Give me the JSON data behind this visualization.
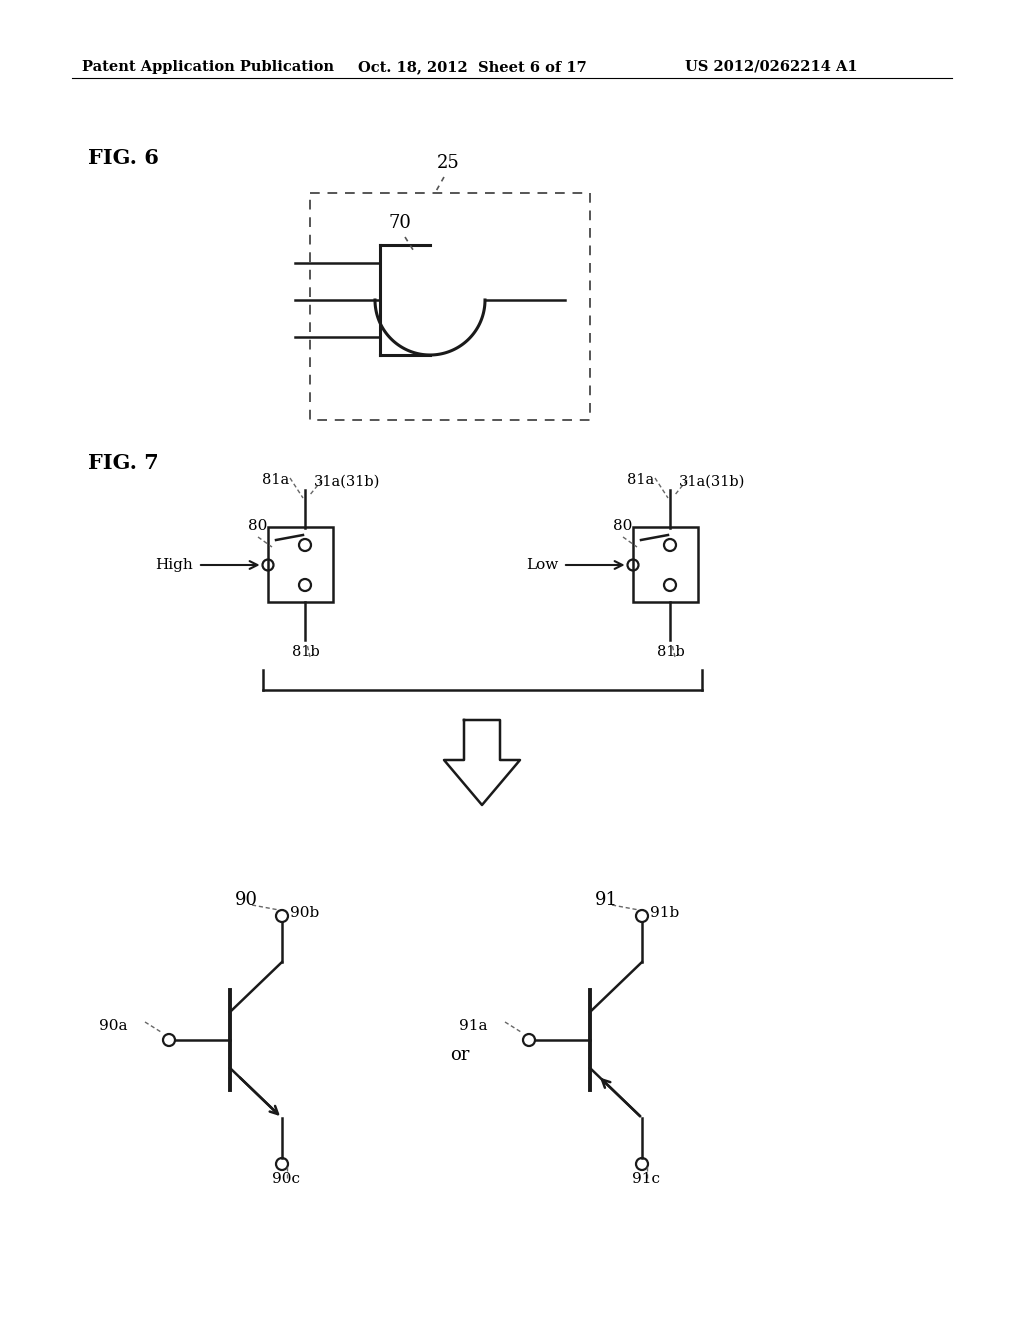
{
  "background_color": "#ffffff",
  "header_left": "Patent Application Publication",
  "header_mid": "Oct. 18, 2012  Sheet 6 of 17",
  "header_right": "US 2012/0262214 A1",
  "fig6_label": "FIG. 6",
  "fig7_label": "FIG. 7",
  "label_25": "25",
  "label_70": "70",
  "label_80_1": "80",
  "label_80_2": "80",
  "label_81a_1": "81a",
  "label_81a_2": "81a",
  "label_81b_1": "81b",
  "label_81b_2": "81b",
  "label_31a_1": "31a(31b)",
  "label_31a_2": "31a(31b)",
  "label_high": "High",
  "label_low": "Low",
  "label_90": "90",
  "label_91": "91",
  "label_90a": "90a",
  "label_90b": "90b",
  "label_90c": "90c",
  "label_91a": "91a",
  "label_91b": "91b",
  "label_91c": "91c",
  "label_or": "or",
  "line_color": "#1a1a1a",
  "dashed_color": "#555555"
}
